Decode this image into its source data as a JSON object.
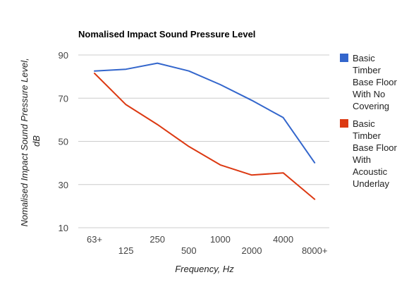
{
  "chart_data": {
    "type": "line",
    "title": "Nomalised Impact Sound Pressure Level",
    "xlabel": "Frequency, Hz",
    "ylabel_lines": [
      "Nomalised Impact Sound Pressure Level,",
      "dB"
    ],
    "categories": [
      "63+",
      "125",
      "250",
      "500",
      "1000",
      "2000",
      "4000",
      "8000+"
    ],
    "y_ticks": [
      "90",
      "70",
      "50",
      "30",
      "10"
    ],
    "ylim": [
      10,
      90
    ],
    "grid": true,
    "legend_position": "right",
    "series": [
      {
        "name": "Basic Timber Base Floor With No Covering",
        "legend_lines": [
          "Basic",
          "Timber",
          "Base Floor",
          "With No",
          "Covering"
        ],
        "color": "#3366cc",
        "values": [
          82.6,
          83.4,
          86.2,
          82.6,
          76.3,
          69.0,
          61.0,
          40.1
        ]
      },
      {
        "name": "Basic Timber Base Floor With Acoustic Underlay",
        "legend_lines": [
          "Basic",
          "Timber",
          "Base Floor",
          "With",
          "Acoustic",
          "Underlay"
        ],
        "color": "#dc3912",
        "values": [
          81.5,
          67.0,
          57.8,
          47.6,
          39.1,
          34.4,
          35.4,
          23.2
        ]
      }
    ]
  }
}
